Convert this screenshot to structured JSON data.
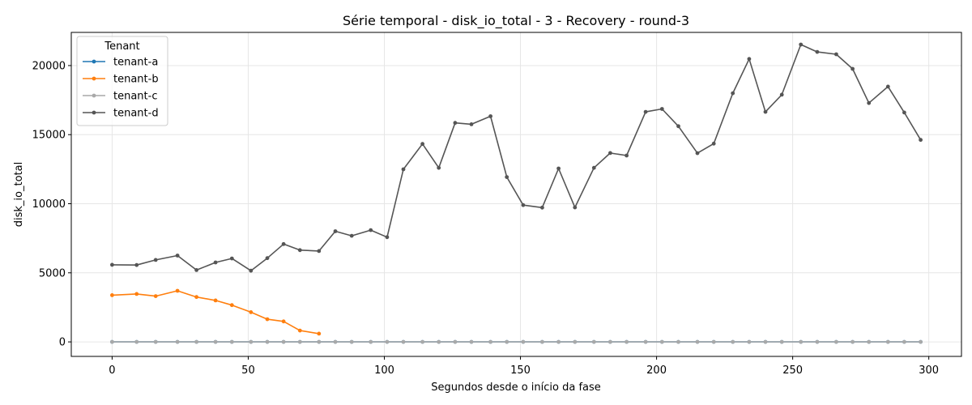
{
  "chart_data": {
    "type": "line",
    "title": "Série temporal - disk_io_total - 3 - Recovery - round-3",
    "xlabel": "Segundos desde o início da fase",
    "ylabel": "disk_io_total",
    "xlim": [
      -15,
      312
    ],
    "ylim": [
      -1050,
      22400
    ],
    "xticks": [
      0,
      50,
      100,
      150,
      200,
      250,
      300
    ],
    "yticks": [
      0,
      5000,
      10000,
      15000,
      20000
    ],
    "grid": true,
    "legend": {
      "title": "Tenant",
      "position": "top-left"
    },
    "series": [
      {
        "name": "tenant-a",
        "color": "#1f77b4",
        "x": [
          0,
          9,
          16,
          24,
          31,
          38,
          44,
          51,
          57,
          63,
          69,
          76,
          82,
          88,
          95,
          101,
          107,
          114,
          120,
          126,
          132,
          139,
          145,
          151,
          158,
          164,
          170,
          177,
          183,
          189,
          196,
          202,
          208,
          215,
          221,
          228,
          234,
          240,
          246,
          253,
          259,
          266,
          272,
          278,
          285,
          291,
          297
        ],
        "y": [
          0,
          0,
          0,
          0,
          0,
          0,
          0,
          0,
          0,
          0,
          0,
          0,
          0,
          0,
          0,
          0,
          0,
          0,
          0,
          0,
          0,
          0,
          0,
          0,
          0,
          0,
          0,
          0,
          0,
          0,
          0,
          0,
          0,
          0,
          0,
          0,
          0,
          0,
          0,
          0,
          0,
          0,
          0,
          0,
          0,
          0,
          0
        ]
      },
      {
        "name": "tenant-b",
        "color": "#ff7f0e",
        "x": [
          0,
          9,
          16,
          24,
          31,
          38,
          44,
          51,
          57,
          63,
          69,
          76
        ],
        "y": [
          3380,
          3470,
          3310,
          3700,
          3250,
          3000,
          2660,
          2150,
          1640,
          1480,
          820,
          600
        ]
      },
      {
        "name": "tenant-c",
        "color": "#a9a9a9",
        "x": [
          0,
          9,
          16,
          24,
          31,
          38,
          44,
          51,
          57,
          63,
          69,
          76,
          82,
          88,
          95,
          101,
          107,
          114,
          120,
          126,
          132,
          139,
          145,
          151,
          158,
          164,
          170,
          177,
          183,
          189,
          196,
          202,
          208,
          215,
          221,
          228,
          234,
          240,
          246,
          253,
          259,
          266,
          272,
          278,
          285,
          291,
          297
        ],
        "y": [
          0,
          0,
          0,
          0,
          0,
          0,
          0,
          0,
          0,
          0,
          0,
          0,
          0,
          0,
          0,
          0,
          0,
          0,
          0,
          0,
          0,
          0,
          0,
          0,
          0,
          0,
          0,
          0,
          0,
          0,
          0,
          0,
          0,
          0,
          0,
          0,
          0,
          0,
          0,
          0,
          0,
          0,
          0,
          0,
          0,
          0,
          0
        ]
      },
      {
        "name": "tenant-d",
        "color": "#555555",
        "x": [
          0,
          9,
          16,
          24,
          31,
          38,
          44,
          51,
          57,
          63,
          69,
          76,
          82,
          88,
          95,
          101,
          107,
          114,
          120,
          126,
          132,
          139,
          145,
          151,
          158,
          164,
          170,
          177,
          183,
          189,
          196,
          202,
          208,
          215,
          221,
          228,
          234,
          240,
          246,
          253,
          259,
          266,
          272,
          278,
          285,
          291,
          297
        ],
        "y": [
          5580,
          5560,
          5930,
          6250,
          5200,
          5750,
          6040,
          5150,
          6060,
          7080,
          6640,
          6580,
          8010,
          7680,
          8090,
          7580,
          12490,
          14330,
          12600,
          15850,
          15750,
          16330,
          11930,
          9900,
          9720,
          12550,
          9730,
          12600,
          13670,
          13490,
          16650,
          16860,
          15610,
          13660,
          14350,
          18000,
          20480,
          16650,
          17890,
          21520,
          20990,
          20820,
          19760,
          17290,
          18480,
          16600,
          14620
        ]
      }
    ]
  }
}
